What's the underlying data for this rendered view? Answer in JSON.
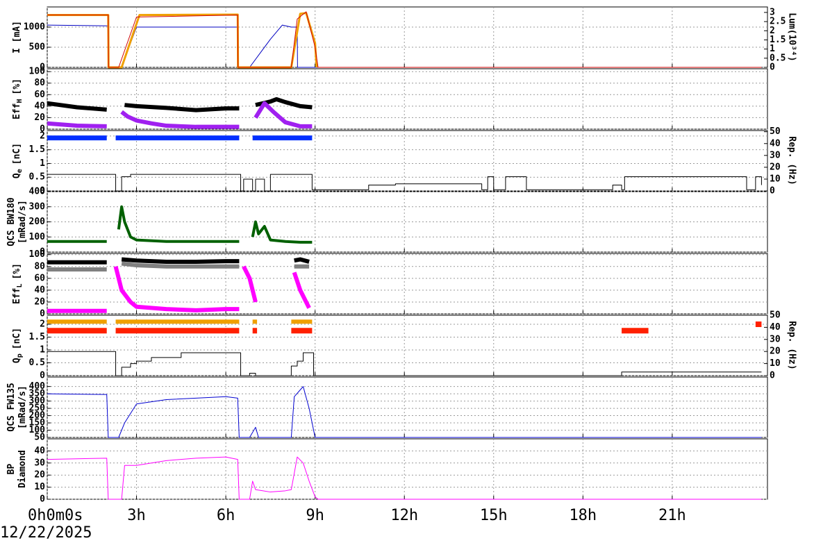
{
  "chart_data": [
    {
      "type": "line",
      "ylabel": [
        "I [mA]"
      ],
      "y2label": "Lum(10³⁴)",
      "xlim": [
        0,
        24.2
      ],
      "ylim": [
        0,
        1500
      ],
      "yticks": [
        0,
        500,
        1000
      ],
      "y2lim": [
        0,
        3.3
      ],
      "y2ticks": [
        0,
        0.5,
        1,
        1.5,
        2,
        2.5,
        3
      ],
      "grid": true,
      "series": [
        {
          "color": "#0000c0",
          "width": 1,
          "x": [
            0,
            2.05,
            2.06,
            2.5,
            3.0,
            6.4,
            6.41,
            6.8,
            7.5,
            7.9,
            8.2,
            8.4,
            8.41,
            9.0,
            24
          ],
          "values": [
            1050,
            1030,
            0,
            0,
            1000,
            1000,
            0,
            0,
            700,
            1050,
            1000,
            1000,
            0,
            0,
            0
          ]
        },
        {
          "color": "#f0a000",
          "width": 3,
          "x": [
            0,
            2.05,
            2.06,
            2.5,
            3.1,
            6.4,
            6.41,
            8.2,
            8.5,
            8.7,
            9.0,
            9.05
          ],
          "values": [
            1300,
            1300,
            0,
            0,
            1300,
            1310,
            0,
            0,
            1330,
            1350,
            600,
            0
          ]
        },
        {
          "color": "#d00000",
          "width": 1,
          "x": [
            0,
            2.05,
            2.06,
            2.4,
            3.0,
            6.4,
            6.41,
            8.2,
            8.4,
            8.7,
            9.0,
            9.1,
            24
          ],
          "values": [
            1300,
            1300,
            0,
            0,
            1250,
            1300,
            0,
            0,
            1200,
            1380,
            500,
            0,
            0
          ]
        }
      ]
    },
    {
      "type": "line",
      "ylabel": [
        "Eff"
      ],
      "ylabel_sub": "H",
      "ylabel_unit": "[%]",
      "xlim": [
        0,
        24.2
      ],
      "ylim": [
        0,
        105
      ],
      "yticks": [
        0,
        20,
        40,
        60,
        80,
        100
      ],
      "grid": true,
      "series": [
        {
          "color": "#000000",
          "width": 6,
          "x": [
            0,
            1,
            2,
            2.1,
            2.6,
            3,
            4,
            5,
            6,
            6.45,
            6.5,
            7,
            7.5,
            7.7,
            8,
            8.5,
            8.9,
            9
          ],
          "values": [
            45,
            38,
            34,
            null,
            42,
            40,
            37,
            33,
            36,
            36,
            null,
            42,
            48,
            52,
            47,
            40,
            38,
            null
          ]
        },
        {
          "color": "#a020f0",
          "width": 6,
          "x": [
            0,
            1,
            2,
            2.1,
            2.5,
            2.7,
            3,
            3.5,
            4,
            5,
            6,
            6.45,
            6.5,
            7,
            7.3,
            7.6,
            8,
            8.5,
            8.9,
            9
          ],
          "values": [
            10,
            6,
            5,
            null,
            30,
            22,
            15,
            10,
            6,
            4,
            4,
            4,
            null,
            20,
            45,
            30,
            12,
            5,
            5,
            null
          ]
        }
      ]
    },
    {
      "type": "line",
      "ylabel": [
        "Q"
      ],
      "ylabel_sub": "e",
      "ylabel_unit": "[nC]",
      "y2label": "Rep. (Hz)",
      "xlim": [
        0,
        24.2
      ],
      "ylim": [
        0,
        2.2
      ],
      "yticks": [
        0,
        0.5,
        1,
        1.5,
        2
      ],
      "y2lim": [
        0,
        51
      ],
      "y2ticks": [
        0,
        10,
        20,
        30,
        40,
        50
      ],
      "grid": true,
      "series": [
        {
          "color": "#0030ff",
          "width": 7,
          "x": [
            0,
            2,
            2.1,
            2.3,
            6.45,
            6.5,
            6.9,
            8.9,
            9
          ],
          "values": [
            1.93,
            1.93,
            null,
            1.93,
            1.93,
            null,
            1.93,
            1.93,
            null
          ]
        },
        {
          "color": "#000000",
          "width": 1,
          "axis": "y2",
          "step": true,
          "x": [
            0,
            2.3,
            2.5,
            2.8,
            6.5,
            6.6,
            6.9,
            7.0,
            7.3,
            7.5,
            8.9,
            10.8,
            11.7,
            14.6,
            14.8,
            15.0,
            15.4,
            16.1,
            19.0,
            19.3,
            19.4,
            23.5,
            23.8,
            24
          ],
          "values": [
            14,
            0,
            12,
            14,
            0,
            10,
            0,
            10,
            0,
            14,
            1,
            5,
            6,
            1,
            12,
            1,
            12,
            1,
            5,
            1,
            12,
            1,
            12,
            5
          ]
        }
      ]
    },
    {
      "type": "line",
      "ylabel": [
        "QCS BW180",
        "[mRad/s]"
      ],
      "xlim": [
        0,
        24.2
      ],
      "ylim": [
        0,
        400
      ],
      "yticks": [
        0,
        100,
        200,
        300,
        400
      ],
      "grid": true,
      "series": [
        {
          "color": "#006000",
          "width": 4,
          "x": [
            0,
            1,
            2,
            2.1,
            2.4,
            2.5,
            2.6,
            2.8,
            3,
            4,
            5,
            6,
            6.45,
            6.5,
            6.9,
            7.0,
            7.1,
            7.3,
            7.5,
            8,
            8.5,
            8.9,
            9
          ],
          "values": [
            70,
            70,
            70,
            null,
            150,
            300,
            200,
            100,
            80,
            70,
            70,
            70,
            70,
            null,
            100,
            200,
            120,
            170,
            80,
            70,
            65,
            65,
            null
          ]
        }
      ]
    },
    {
      "type": "line",
      "ylabel": [
        "Eff"
      ],
      "ylabel_sub": "L",
      "ylabel_unit": "[%]",
      "xlim": [
        0,
        24.2
      ],
      "ylim": [
        0,
        102
      ],
      "yticks": [
        0,
        20,
        40,
        60,
        80,
        100
      ],
      "grid": true,
      "series": [
        {
          "color": "#808080",
          "width": 6,
          "x": [
            0,
            2,
            2.1,
            2.5,
            3,
            4,
            6,
            6.45,
            6.5,
            8.3,
            8.8,
            8.9
          ],
          "values": [
            75,
            75,
            null,
            85,
            82,
            80,
            80,
            80,
            null,
            80,
            80,
            null
          ]
        },
        {
          "color": "#000000",
          "width": 6,
          "x": [
            0,
            2,
            2.1,
            2.5,
            3,
            4,
            5,
            6,
            6.45,
            6.5,
            8.3,
            8.5,
            8.8,
            8.9
          ],
          "values": [
            87,
            87,
            null,
            92,
            90,
            88,
            88,
            89,
            89,
            null,
            90,
            92,
            88,
            null
          ]
        },
        {
          "color": "#ff00ff",
          "width": 6,
          "x": [
            0,
            2,
            2.1,
            2.3,
            2.5,
            2.8,
            3,
            4,
            5,
            6,
            6.45,
            6.5,
            6.6,
            6.8,
            7.0,
            7.1,
            8.3,
            8.5,
            8.8,
            8.9
          ],
          "values": [
            5,
            5,
            null,
            80,
            40,
            20,
            12,
            8,
            6,
            8,
            8,
            null,
            80,
            60,
            20,
            null,
            70,
            40,
            10,
            null
          ]
        }
      ]
    },
    {
      "type": "line",
      "ylabel": [
        "Q"
      ],
      "ylabel_sub": "p",
      "ylabel_unit": "[nC]",
      "y2label": "Rep. (Hz)",
      "xlim": [
        0,
        24.2
      ],
      "ylim": [
        0,
        2.35
      ],
      "yticks": [
        0,
        0.5,
        1,
        1.5,
        2
      ],
      "y2lim": [
        0,
        50
      ],
      "y2ticks": [
        0,
        10,
        20,
        30,
        40,
        50
      ],
      "grid": true,
      "series": [
        {
          "color": "#f0a000",
          "width": 6,
          "x": [
            0,
            2,
            2.1,
            2.3,
            6.45,
            6.5,
            6.9,
            7.05,
            7.1,
            8.2,
            8.9,
            9
          ],
          "values": [
            2.1,
            2.1,
            null,
            2.1,
            2.1,
            null,
            2.1,
            2.1,
            null,
            2.1,
            2.1,
            null
          ]
        },
        {
          "color": "#ff2000",
          "width": 8,
          "x": [
            0,
            2,
            2.1,
            2.3,
            6.45,
            6.5,
            6.9,
            7.05,
            7.1,
            8.2,
            8.9,
            9,
            19.3,
            20.2,
            20.3,
            23.8,
            24
          ],
          "values": [
            1.75,
            1.75,
            null,
            1.75,
            1.75,
            null,
            1.75,
            1.75,
            null,
            1.75,
            1.75,
            null,
            1.75,
            1.75,
            null,
            2.0,
            2.0
          ]
        },
        {
          "color": "#000000",
          "width": 1,
          "axis": "y2",
          "step": true,
          "x": [
            0,
            2.3,
            2.5,
            2.8,
            3.0,
            3.5,
            4.5,
            6.5,
            6.8,
            7.0,
            8.2,
            8.4,
            8.6,
            8.95,
            19.3,
            24
          ],
          "values": [
            20,
            0,
            7,
            10,
            12,
            15,
            19,
            0,
            2,
            0,
            8,
            12,
            19,
            0,
            3,
            3
          ]
        }
      ]
    },
    {
      "type": "line",
      "ylabel": [
        "QCS FW135",
        "[mRad/s]"
      ],
      "xlim": [
        0,
        24.2
      ],
      "ylim": [
        50,
        465
      ],
      "yticks": [
        50,
        100,
        150,
        200,
        250,
        300,
        350,
        400
      ],
      "grid": true,
      "series": [
        {
          "color": "#0000d0",
          "width": 1,
          "x": [
            0,
            2,
            2.05,
            2.4,
            2.6,
            3,
            4,
            5,
            6,
            6.4,
            6.45,
            6.8,
            7.0,
            7.1,
            8.2,
            8.3,
            8.6,
            8.8,
            9.0,
            24
          ],
          "values": [
            350,
            345,
            50,
            50,
            150,
            280,
            310,
            320,
            330,
            320,
            50,
            50,
            120,
            50,
            50,
            330,
            400,
            250,
            50,
            50
          ]
        }
      ]
    },
    {
      "type": "line",
      "ylabel": [
        "BP",
        "Diamond"
      ],
      "xlim": [
        0,
        24.2
      ],
      "ylim": [
        0,
        50
      ],
      "yticks": [
        0,
        10,
        20,
        30,
        40
      ],
      "grid": true,
      "xticks": [
        {
          "value": 0,
          "label": "0h0m0s"
        },
        {
          "value": 3,
          "label": "3h"
        },
        {
          "value": 6,
          "label": "6h"
        },
        {
          "value": 9,
          "label": "9h"
        },
        {
          "value": 12,
          "label": "12h"
        },
        {
          "value": 15,
          "label": "15h"
        },
        {
          "value": 18,
          "label": "18h"
        },
        {
          "value": 21,
          "label": "21h"
        }
      ],
      "series": [
        {
          "color": "#ff00ff",
          "width": 1,
          "x": [
            0,
            2,
            2.05,
            2.5,
            2.6,
            3,
            4,
            5,
            6,
            6.4,
            6.45,
            6.8,
            6.9,
            7.0,
            7.5,
            8,
            8.2,
            8.4,
            8.6,
            8.8,
            9.0,
            9.1,
            24
          ],
          "values": [
            33,
            34,
            0,
            0,
            28,
            28,
            32,
            34,
            35,
            33,
            0,
            0,
            15,
            8,
            6,
            7,
            8,
            35,
            30,
            15,
            2,
            0,
            0
          ]
        }
      ]
    }
  ],
  "date": "12/22/2025"
}
